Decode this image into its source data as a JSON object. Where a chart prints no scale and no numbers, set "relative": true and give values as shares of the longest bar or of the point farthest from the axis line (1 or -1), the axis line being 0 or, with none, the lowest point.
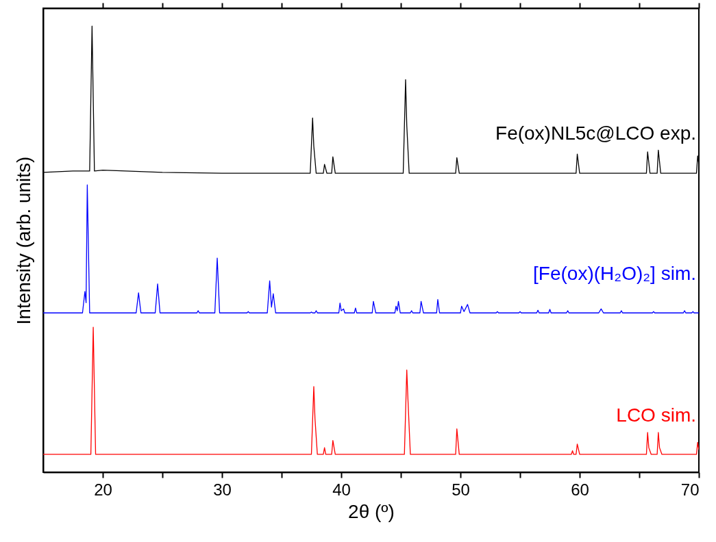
{
  "chart_data": {
    "type": "line",
    "relative": true,
    "xlabel": "2θ (º)",
    "ylabel": "Intensity (arb. units)",
    "xlim": [
      15,
      70
    ],
    "xticks": [
      20,
      {
        "value": 25,
        "label": null
      },
      30,
      {
        "value": 35,
        "label": null
      },
      40,
      {
        "value": 45,
        "label": null
      },
      50,
      {
        "value": 55,
        "label": null
      },
      60,
      {
        "value": 65,
        "label": null
      },
      70
    ],
    "grid": false,
    "series": [
      {
        "name": "Fe(ox)NL5c@LCO exp.",
        "color": "#000000",
        "x": [
          15,
          17.5,
          18.9,
          19.1,
          19.3,
          20.0,
          25,
          30,
          37.4,
          37.6,
          37.7,
          37.9,
          38.5,
          38.6,
          38.8,
          39.2,
          39.3,
          39.5,
          45.2,
          45.4,
          45.5,
          45.7,
          49.6,
          49.7,
          49.9,
          59.7,
          59.8,
          60.0,
          65.6,
          65.7,
          65.9,
          66.5,
          66.6,
          66.8,
          69.8,
          69.9,
          70
        ],
        "values": [
          0.672,
          0.675,
          0.675,
          1.0,
          0.675,
          0.677,
          0.672,
          0.67,
          0.67,
          0.794,
          0.731,
          0.67,
          0.67,
          0.69,
          0.67,
          0.67,
          0.707,
          0.67,
          0.67,
          0.88,
          0.777,
          0.67,
          0.67,
          0.705,
          0.67,
          0.67,
          0.713,
          0.67,
          0.67,
          0.718,
          0.67,
          0.67,
          0.722,
          0.67,
          0.67,
          0.709,
          0.69
        ]
      },
      {
        "name": "[Fe(ox)(H₂O)₂] sim.",
        "color": "#0000ff",
        "x": [
          15,
          18.3,
          18.5,
          18.6,
          18.7,
          18.9,
          22.8,
          23.0,
          23.2,
          24.4,
          24.6,
          24.8,
          27.9,
          28.0,
          28.1,
          29.4,
          29.6,
          29.8,
          32.1,
          32.2,
          32.3,
          33.8,
          34.0,
          34.15,
          34.3,
          34.5,
          37.4,
          37.5,
          37.6,
          37.8,
          37.9,
          38.0,
          39.8,
          39.9,
          40.0,
          40.2,
          40.3,
          41.1,
          41.2,
          41.3,
          42.6,
          42.7,
          42.9,
          44.5,
          44.6,
          44.7,
          44.8,
          44.95,
          45.8,
          45.9,
          46.0,
          46.6,
          46.7,
          46.9,
          48.0,
          48.1,
          48.25,
          50.0,
          50.1,
          50.3,
          50.6,
          50.8,
          53.0,
          53.1,
          53.2,
          54.9,
          55.0,
          55.1,
          56.4,
          56.5,
          56.6,
          57.4,
          57.5,
          57.6,
          58.9,
          59.0,
          59.1,
          61.6,
          61.8,
          62.0,
          63.4,
          63.5,
          63.6,
          66.1,
          66.2,
          66.3,
          68.7,
          68.8,
          68.9,
          69.4,
          69.5,
          69.6,
          70
        ],
        "values": [
          0.357,
          0.357,
          0.405,
          0.38,
          0.644,
          0.357,
          0.357,
          0.402,
          0.357,
          0.357,
          0.422,
          0.357,
          0.357,
          0.362,
          0.357,
          0.357,
          0.48,
          0.357,
          0.357,
          0.36,
          0.357,
          0.357,
          0.429,
          0.37,
          0.4,
          0.357,
          0.357,
          0.359,
          0.357,
          0.357,
          0.362,
          0.357,
          0.357,
          0.379,
          0.362,
          0.366,
          0.357,
          0.357,
          0.368,
          0.357,
          0.357,
          0.383,
          0.357,
          0.357,
          0.372,
          0.362,
          0.383,
          0.357,
          0.357,
          0.362,
          0.357,
          0.357,
          0.383,
          0.357,
          0.357,
          0.387,
          0.357,
          0.357,
          0.372,
          0.36,
          0.376,
          0.357,
          0.357,
          0.36,
          0.357,
          0.357,
          0.36,
          0.357,
          0.357,
          0.363,
          0.357,
          0.357,
          0.365,
          0.357,
          0.357,
          0.362,
          0.357,
          0.357,
          0.366,
          0.357,
          0.357,
          0.362,
          0.357,
          0.357,
          0.36,
          0.357,
          0.357,
          0.362,
          0.357,
          0.357,
          0.36,
          0.357,
          0.357
        ]
      },
      {
        "name": "LCO sim.",
        "color": "#ff0000",
        "x": [
          15,
          19.0,
          19.2,
          19.4,
          37.5,
          37.7,
          37.8,
          38.0,
          38.5,
          38.6,
          38.7,
          39.2,
          39.3,
          39.5,
          45.3,
          45.5,
          45.6,
          45.8,
          49.6,
          49.7,
          49.9,
          59.3,
          59.4,
          59.5,
          59.7,
          59.8,
          60.0,
          65.6,
          65.7,
          65.8,
          66.0,
          66.5,
          66.6,
          66.7,
          66.9,
          69.8,
          69.9,
          70
        ],
        "values": [
          0.04,
          0.04,
          0.325,
          0.04,
          0.04,
          0.192,
          0.12,
          0.04,
          0.04,
          0.055,
          0.04,
          0.04,
          0.071,
          0.04,
          0.04,
          0.229,
          0.162,
          0.04,
          0.04,
          0.097,
          0.04,
          0.04,
          0.048,
          0.04,
          0.04,
          0.063,
          0.04,
          0.04,
          0.089,
          0.055,
          0.04,
          0.04,
          0.089,
          0.055,
          0.04,
          0.04,
          0.067,
          0.05
        ]
      }
    ]
  }
}
